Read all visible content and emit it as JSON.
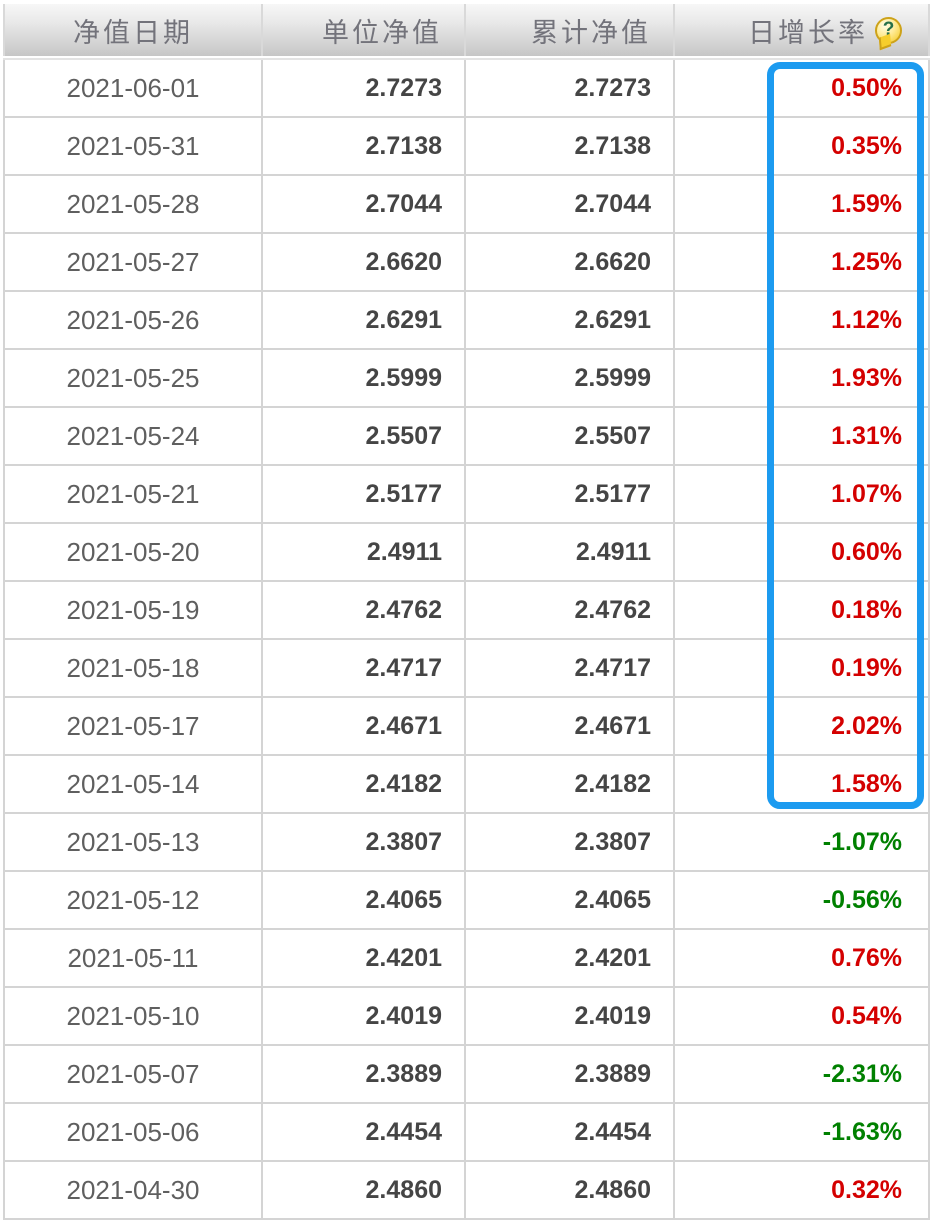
{
  "table": {
    "columns": [
      {
        "id": "date",
        "label": "净值日期"
      },
      {
        "id": "unit_nav",
        "label": "单位净值"
      },
      {
        "id": "cumulative_nav",
        "label": "累计净值"
      },
      {
        "id": "daily_growth",
        "label": "日增长率"
      }
    ],
    "help_icon_glyph": "?",
    "rows": [
      {
        "date": "2021-06-01",
        "unit_nav": "2.7273",
        "cumulative_nav": "2.7273",
        "daily_growth": "0.50%"
      },
      {
        "date": "2021-05-31",
        "unit_nav": "2.7138",
        "cumulative_nav": "2.7138",
        "daily_growth": "0.35%"
      },
      {
        "date": "2021-05-28",
        "unit_nav": "2.7044",
        "cumulative_nav": "2.7044",
        "daily_growth": "1.59%"
      },
      {
        "date": "2021-05-27",
        "unit_nav": "2.6620",
        "cumulative_nav": "2.6620",
        "daily_growth": "1.25%"
      },
      {
        "date": "2021-05-26",
        "unit_nav": "2.6291",
        "cumulative_nav": "2.6291",
        "daily_growth": "1.12%"
      },
      {
        "date": "2021-05-25",
        "unit_nav": "2.5999",
        "cumulative_nav": "2.5999",
        "daily_growth": "1.93%"
      },
      {
        "date": "2021-05-24",
        "unit_nav": "2.5507",
        "cumulative_nav": "2.5507",
        "daily_growth": "1.31%"
      },
      {
        "date": "2021-05-21",
        "unit_nav": "2.5177",
        "cumulative_nav": "2.5177",
        "daily_growth": "1.07%"
      },
      {
        "date": "2021-05-20",
        "unit_nav": "2.4911",
        "cumulative_nav": "2.4911",
        "daily_growth": "0.60%"
      },
      {
        "date": "2021-05-19",
        "unit_nav": "2.4762",
        "cumulative_nav": "2.4762",
        "daily_growth": "0.18%"
      },
      {
        "date": "2021-05-18",
        "unit_nav": "2.4717",
        "cumulative_nav": "2.4717",
        "daily_growth": "0.19%"
      },
      {
        "date": "2021-05-17",
        "unit_nav": "2.4671",
        "cumulative_nav": "2.4671",
        "daily_growth": "2.02%"
      },
      {
        "date": "2021-05-14",
        "unit_nav": "2.4182",
        "cumulative_nav": "2.4182",
        "daily_growth": "1.58%"
      },
      {
        "date": "2021-05-13",
        "unit_nav": "2.3807",
        "cumulative_nav": "2.3807",
        "daily_growth": "-1.07%"
      },
      {
        "date": "2021-05-12",
        "unit_nav": "2.4065",
        "cumulative_nav": "2.4065",
        "daily_growth": "-0.56%"
      },
      {
        "date": "2021-05-11",
        "unit_nav": "2.4201",
        "cumulative_nav": "2.4201",
        "daily_growth": "0.76%"
      },
      {
        "date": "2021-05-10",
        "unit_nav": "2.4019",
        "cumulative_nav": "2.4019",
        "daily_growth": "0.54%"
      },
      {
        "date": "2021-05-07",
        "unit_nav": "2.3889",
        "cumulative_nav": "2.3889",
        "daily_growth": "-2.31%"
      },
      {
        "date": "2021-05-06",
        "unit_nav": "2.4454",
        "cumulative_nav": "2.4454",
        "daily_growth": "-1.63%"
      },
      {
        "date": "2021-04-30",
        "unit_nav": "2.4860",
        "cumulative_nav": "2.4860",
        "daily_growth": "0.32%"
      }
    ],
    "highlight": {
      "start_date": "2021-06-01",
      "end_date": "2021-05-14",
      "border_color": "#1c9bf0"
    }
  },
  "colors": {
    "positive": "#d40000",
    "negative": "#008000"
  }
}
